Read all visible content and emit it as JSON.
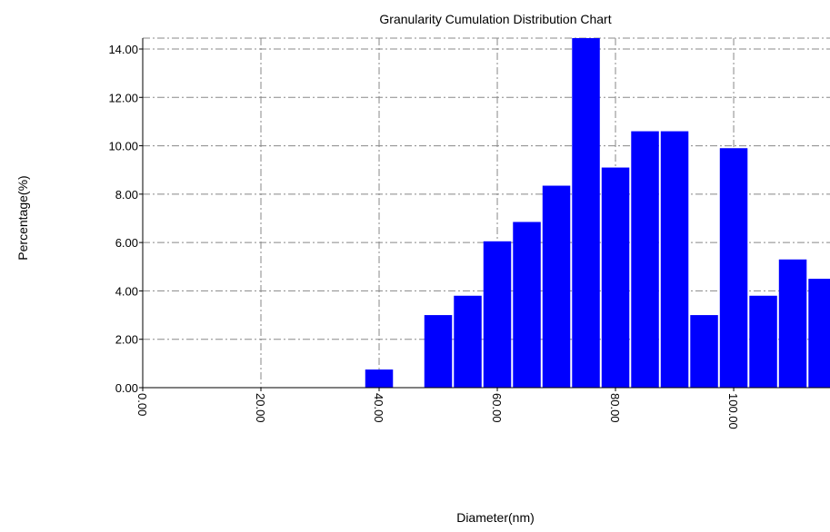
{
  "chart_data": {
    "type": "histogram",
    "title": "Granularity Cumulation Distribution  Chart",
    "x_label": "Diameter(nm)",
    "y_label": "Percentage(%)",
    "bins": [
      37.5,
      42.5,
      47.5,
      52.5,
      57.5,
      62.5,
      67.5,
      72.5,
      77.5,
      82.5,
      87.5,
      92.5,
      97.5,
      102.5,
      107.5,
      112.5,
      117.5
    ],
    "values": [
      0.75,
      0,
      3.0,
      3.8,
      6.05,
      6.85,
      8.35,
      14.5,
      9.1,
      10.6,
      10.6,
      3.0,
      9.9,
      3.8,
      5.3,
      4.5
    ],
    "color": "#0000ff",
    "xlim": [
      0,
      116.3
    ],
    "ylim": [
      0,
      14.45
    ],
    "xticks": [
      {
        "value": 0,
        "label": "0.00"
      },
      {
        "value": 20,
        "label": "20.00"
      },
      {
        "value": 40,
        "label": "40.00"
      },
      {
        "value": 60,
        "label": "60.00"
      },
      {
        "value": 80,
        "label": "80.00"
      },
      {
        "value": 100,
        "label": "100.00"
      }
    ],
    "yticks": [
      {
        "value": 0,
        "label": "0.00"
      },
      {
        "value": 2,
        "label": "2.00"
      },
      {
        "value": 4,
        "label": "4.00"
      },
      {
        "value": 6,
        "label": "6.00"
      },
      {
        "value": 8,
        "label": "8.00"
      },
      {
        "value": 10,
        "label": "10.00"
      },
      {
        "value": 12,
        "label": "12.00"
      },
      {
        "value": 14,
        "label": "14.00"
      }
    ],
    "grid": true
  }
}
